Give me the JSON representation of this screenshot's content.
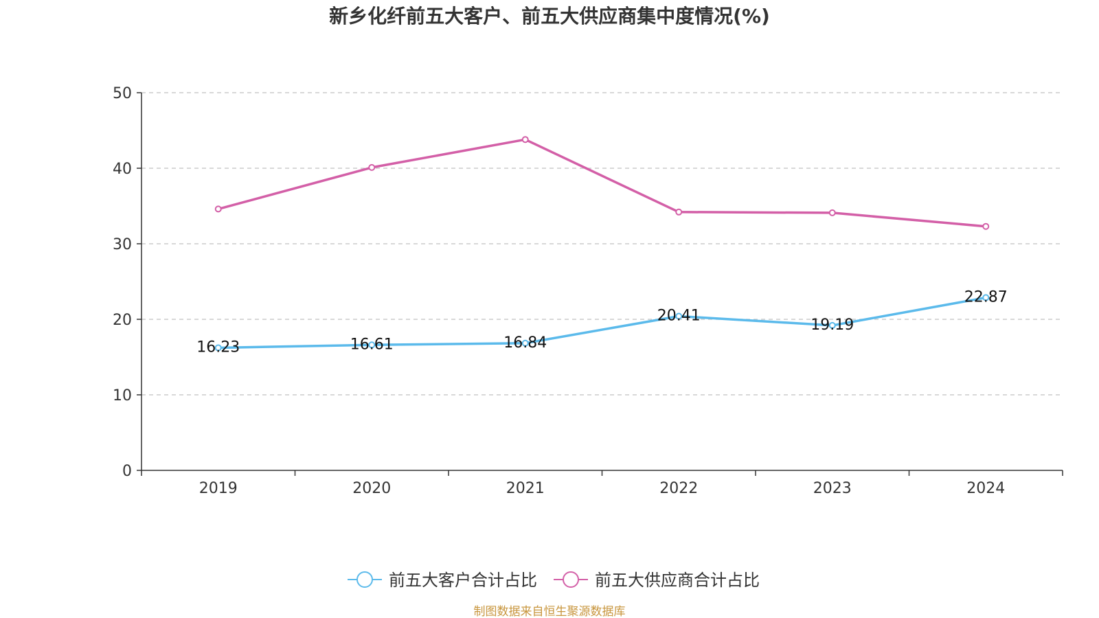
{
  "chart_data": {
    "type": "line",
    "title": "新乡化纤前五大客户、前五大供应商集中度情况(%)",
    "categories": [
      "2019",
      "2020",
      "2021",
      "2022",
      "2023",
      "2024"
    ],
    "ylim": [
      0,
      50
    ],
    "yticks": [
      0,
      10,
      20,
      30,
      40,
      50
    ],
    "grid": true,
    "legend_position": "bottom",
    "series": [
      {
        "name": "前五大客户合计占比",
        "color": "#5BBAEB",
        "values": [
          16.23,
          16.61,
          16.84,
          20.41,
          19.19,
          22.87
        ],
        "labels": [
          "16.23",
          "16.61",
          "16.84",
          "20.41",
          "19.19",
          "22.87"
        ]
      },
      {
        "name": "前五大供应商合计占比",
        "color": "#D35FA7",
        "values": [
          34.6,
          40.1,
          43.8,
          34.2,
          34.1,
          32.3
        ]
      }
    ]
  },
  "source_note": "制图数据来自恒生聚源数据库",
  "source_color": "#C8963E"
}
